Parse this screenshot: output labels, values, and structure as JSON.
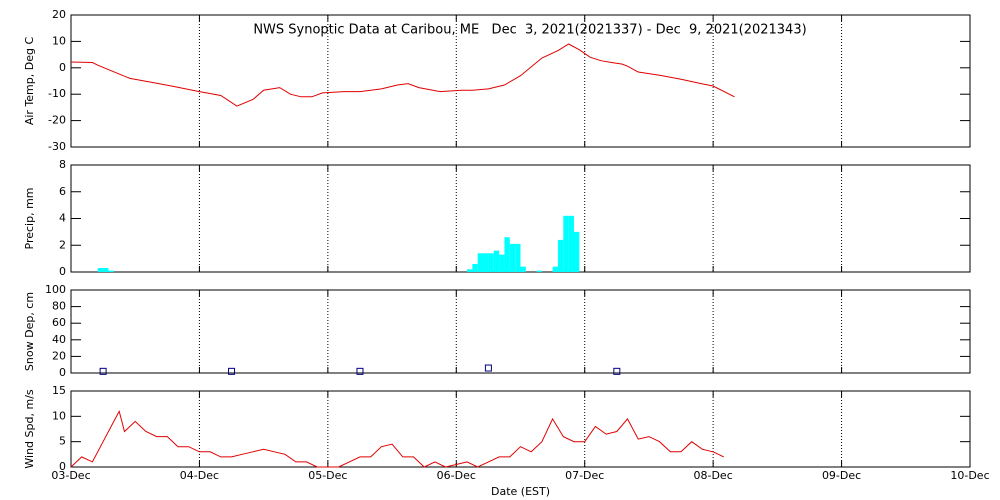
{
  "chart_data": [
    {
      "type": "line",
      "title": "NWS Synoptic Data at Caribou, ME   Dec  3, 2021(2021337) - Dec  9, 2021(2021343)",
      "ylabel": "Air Temp, Deg C",
      "color": "#e00000",
      "x": [
        0,
        4,
        5,
        8,
        11,
        15,
        19,
        24,
        28,
        31,
        34,
        36,
        39,
        41,
        43,
        45,
        47,
        51,
        54,
        58,
        61,
        63,
        65,
        69,
        73,
        75,
        78,
        81,
        84,
        88,
        91,
        93,
        95,
        97,
        99,
        101,
        103,
        104,
        106,
        110,
        114,
        118,
        120,
        124
      ],
      "values": [
        2.2,
        2,
        1,
        -1.5,
        -4,
        -5.5,
        -7,
        -9,
        -10.5,
        -14.5,
        -12,
        -8.5,
        -7.5,
        -10,
        -11,
        -11,
        -9.5,
        -9,
        -9,
        -8,
        -6.5,
        -6,
        -7.5,
        -9,
        -8.5,
        -8.5,
        -8,
        -6.5,
        -3,
        3.7,
        6.5,
        9,
        6.8,
        4,
        2.7,
        2,
        1.4,
        0.6,
        -1.6,
        -2.8,
        -4.3,
        -6.1,
        -6.9,
        -11
      ],
      "ylim": [
        -30,
        20
      ],
      "yticks": [
        -30,
        -20,
        -10,
        0,
        10,
        20
      ]
    },
    {
      "type": "bar",
      "ylabel": "Precip, mm",
      "color": "#00ffff",
      "x": [
        5,
        6,
        7,
        74,
        75,
        76,
        77,
        78,
        79,
        80,
        81,
        82,
        83,
        84,
        87,
        90,
        91,
        92,
        93,
        94
      ],
      "values": [
        0.3,
        0.3,
        0.1,
        0.2,
        0.6,
        1.4,
        1.4,
        1.4,
        1.6,
        1.3,
        2.6,
        2.1,
        2.1,
        0.4,
        0.1,
        0.4,
        2.4,
        4.2,
        4.2,
        3
      ],
      "ylim": [
        0,
        8
      ],
      "yticks": [
        0,
        2,
        4,
        6,
        8
      ]
    },
    {
      "type": "scatter",
      "ylabel": "Snow Dep, cm",
      "color": "#000080",
      "x": [
        6,
        30,
        54,
        78,
        102
      ],
      "values": [
        2,
        2,
        2,
        6,
        2
      ],
      "ylim": [
        0,
        100
      ],
      "yticks": [
        0,
        20,
        40,
        60,
        80,
        100
      ]
    },
    {
      "type": "line",
      "ylabel": "Wind Spd, m/s",
      "xlabel": "Date (EST)",
      "color": "#e00000",
      "x": [
        0,
        2,
        4,
        6,
        8,
        9,
        10,
        12,
        14,
        16,
        18,
        20,
        22,
        24,
        26,
        28,
        30,
        32,
        34,
        36,
        38,
        40,
        42,
        44,
        46,
        48,
        50,
        52,
        54,
        56,
        58,
        60,
        62,
        64,
        66,
        68,
        70,
        72,
        74,
        76,
        78,
        80,
        82,
        84,
        86,
        88,
        90,
        92,
        94,
        96,
        98,
        100,
        102,
        104,
        106,
        108,
        110,
        112,
        114,
        116,
        118,
        120,
        122
      ],
      "values": [
        0,
        2,
        1,
        5,
        9,
        11,
        7,
        9,
        7,
        6,
        6,
        4,
        4,
        3,
        3,
        2,
        2,
        2.5,
        3,
        3.5,
        3,
        2.5,
        1,
        1,
        0,
        0,
        0,
        1,
        2,
        2,
        4,
        4.5,
        2,
        2,
        0,
        1,
        0,
        0.5,
        1,
        0,
        1,
        2,
        2,
        4,
        3,
        5,
        9.5,
        6,
        5,
        5,
        8,
        6.5,
        7,
        9.5,
        5.5,
        6,
        5,
        3,
        3,
        5,
        3.5,
        3,
        2
      ],
      "ylim": [
        0,
        15
      ],
      "yticks": [
        0,
        5,
        10,
        15
      ],
      "xlim": [
        0,
        168
      ],
      "xticks": [
        {
          "value": 0,
          "label": "03-Dec"
        },
        {
          "value": 24,
          "label": "04-Dec"
        },
        {
          "value": 48,
          "label": "05-Dec"
        },
        {
          "value": 72,
          "label": "06-Dec"
        },
        {
          "value": 96,
          "label": "07-Dec"
        },
        {
          "value": 120,
          "label": "08-Dec"
        },
        {
          "value": 144,
          "label": "09-Dec"
        },
        {
          "value": 168,
          "label": "10-Dec"
        }
      ]
    }
  ]
}
